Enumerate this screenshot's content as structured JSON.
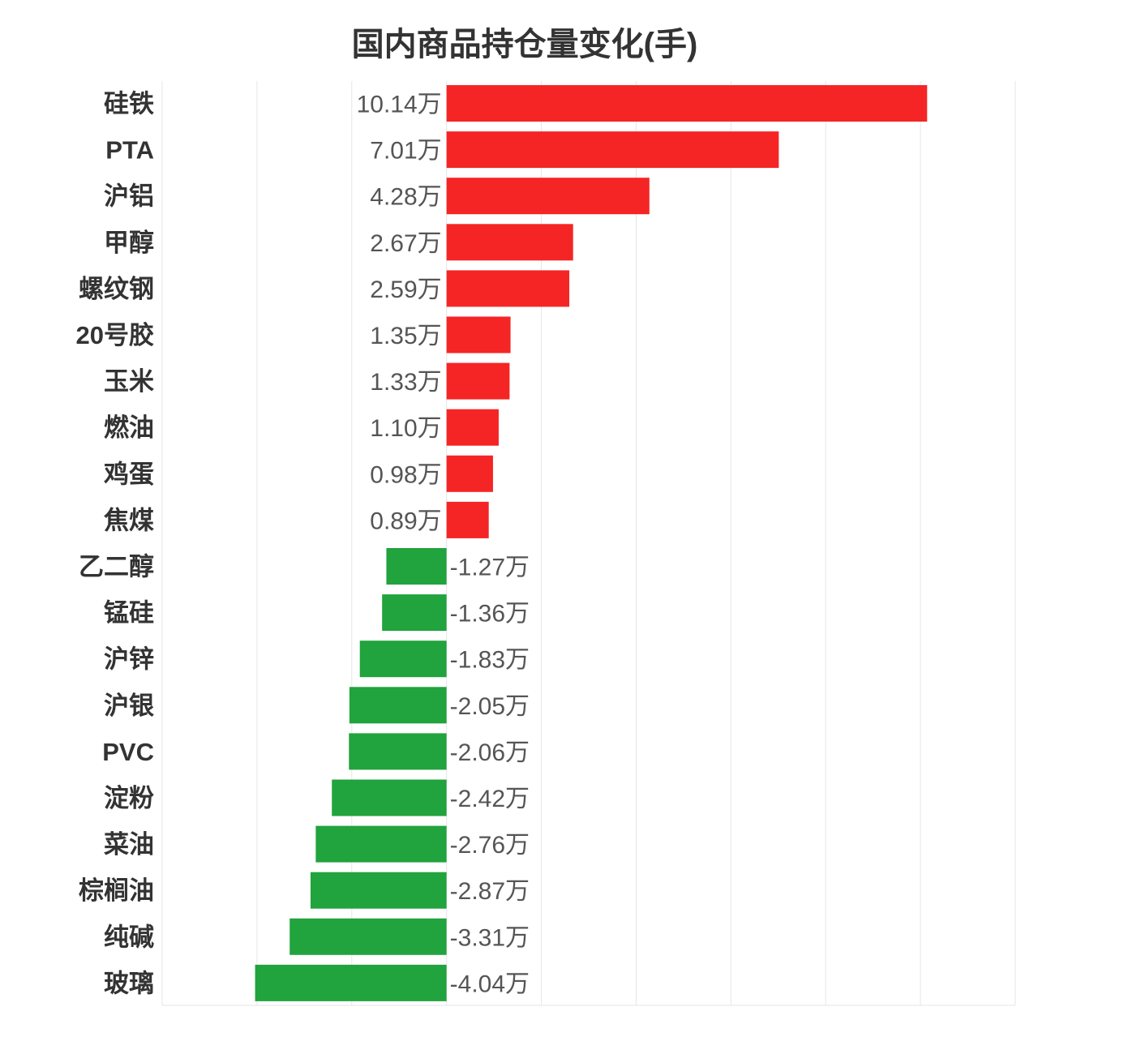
{
  "chart_data": {
    "type": "bar",
    "orientation": "horizontal",
    "title": "国内商品持仓量变化(手)",
    "xlabel": "",
    "ylabel": "",
    "unit": "万",
    "categories": [
      "硅铁",
      "PTA",
      "沪铝",
      "甲醇",
      "螺纹钢",
      "20号胶",
      "玉米",
      "燃油",
      "鸡蛋",
      "焦煤",
      "乙二醇",
      "锰硅",
      "沪锌",
      "沪银",
      "PVC",
      "淀粉",
      "菜油",
      "棕榈油",
      "纯碱",
      "玻璃"
    ],
    "values": [
      10.14,
      7.01,
      4.28,
      2.67,
      2.59,
      1.35,
      1.33,
      1.1,
      0.98,
      0.89,
      -1.27,
      -1.36,
      -1.83,
      -2.05,
      -2.06,
      -2.42,
      -2.76,
      -2.87,
      -3.31,
      -4.04
    ],
    "value_labels": [
      "10.14万",
      "7.01万",
      "4.28万",
      "2.67万",
      "2.59万",
      "1.35万",
      "1.33万",
      "1.10万",
      "0.98万",
      "0.89万",
      "-1.27万",
      "-1.36万",
      "-1.83万",
      "-2.05万",
      "-2.06万",
      "-2.42万",
      "-2.76万",
      "-2.87万",
      "-3.31万",
      "-4.04万"
    ],
    "xlim": [
      -6,
      12
    ],
    "grid": true,
    "legend": "none",
    "colors": {
      "positive": "#f52525",
      "negative": "#21a33d",
      "grid": "#e6e6e6"
    }
  }
}
